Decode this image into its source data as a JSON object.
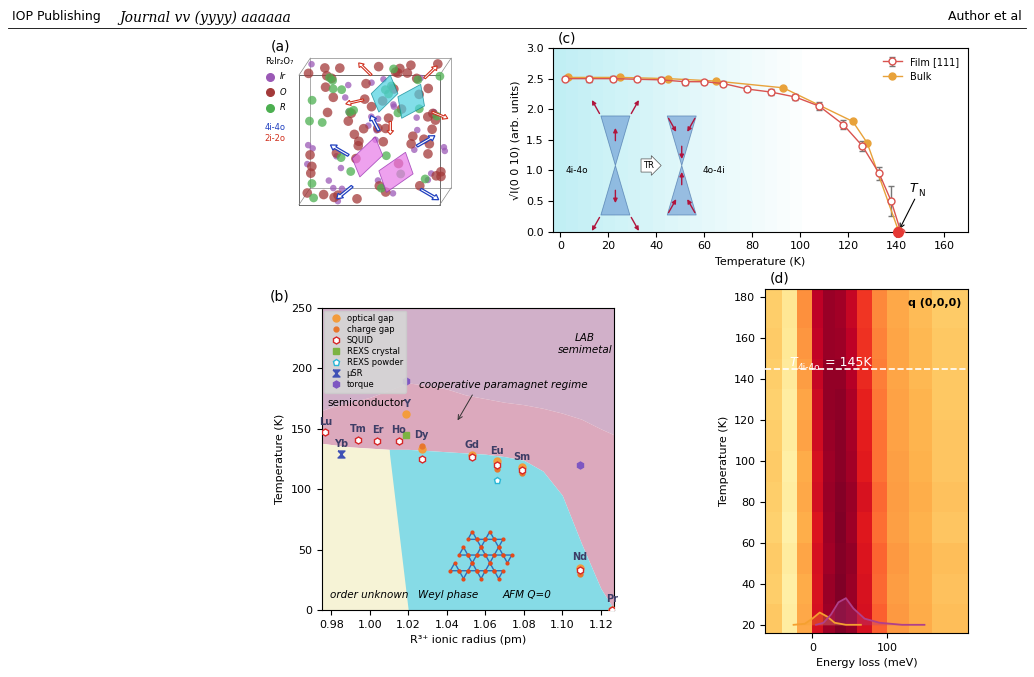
{
  "header": {
    "publisher": "IOP Publishing",
    "journal": "Journal vv (yyyy) aaaaaa",
    "author": "Author et al"
  },
  "panel_a": {
    "label": "(a)",
    "formula": "R₂Ir₂O₇",
    "atoms": [
      {
        "name": "Ir",
        "color": "#9b59b6"
      },
      {
        "name": "O",
        "color": "#a33a3a"
      },
      {
        "name": "R",
        "color": "#4caf50"
      }
    ],
    "configurations": [
      {
        "name": "4i-4o",
        "color": "#1f3fbf"
      },
      {
        "name": "2i-2o",
        "color": "#d0301e"
      }
    ]
  },
  "chart_data": [
    {
      "label": "(b)",
      "type": "scatter",
      "xlabel": "R³⁺ ionic radius (pm)",
      "ylabel": "Temperature (K)",
      "xlim": [
        0.975,
        1.127
      ],
      "xticks": [
        {
          "value": 0.98,
          "label": "0.98"
        },
        {
          "value": 1.0,
          "label": "1.00"
        },
        {
          "value": 1.02,
          "label": "1.02"
        },
        {
          "value": 1.04,
          "label": "1.04"
        },
        {
          "value": 1.06,
          "label": "1.06"
        },
        {
          "value": 1.08,
          "label": "1.08"
        },
        {
          "value": 1.1,
          "label": "1.10"
        },
        {
          "value": 1.12,
          "label": "1.12"
        }
      ],
      "ylim": [
        0,
        250
      ],
      "yticks": [
        0,
        50,
        100,
        150,
        200,
        250
      ],
      "legend": "upper left",
      "series": [
        {
          "name": "optical gap",
          "color": "#f39c3c",
          "marker": "circle",
          "x": [
            1.019,
            1.027,
            1.053,
            1.066,
            1.079,
            1.109,
            1.126
          ],
          "values": [
            162,
            133,
            128,
            123,
            118,
            35,
            0
          ]
        },
        {
          "name": "charge gap",
          "color": "#e8762c",
          "marker": "dot",
          "x": [
            1.027,
            1.066,
            1.079,
            1.109
          ],
          "values": [
            136,
            117,
            113,
            30
          ]
        },
        {
          "name": "SQUID",
          "color": "#d62728",
          "marker": "open hexagon",
          "x": [
            0.977,
            0.994,
            1.004,
            1.015,
            1.027,
            1.053,
            1.066,
            1.079,
            1.109,
            1.126
          ],
          "values": [
            147,
            141,
            140,
            140,
            125,
            127,
            120,
            116,
            33,
            0
          ]
        },
        {
          "name": "REXS crystal",
          "color": "#7cb342",
          "marker": "square",
          "x": [
            1.019
          ],
          "values": [
            145
          ]
        },
        {
          "name": "REXS powder",
          "color": "#29b6d6",
          "marker": "open pentagon",
          "x": [
            1.066
          ],
          "values": [
            108
          ]
        },
        {
          "name": "μSR",
          "color": "#3f51b5",
          "marker": "hourglass",
          "x": [
            0.985
          ],
          "values": [
            129
          ]
        },
        {
          "name": "torque",
          "color": "#7e57c2",
          "marker": "hexagon",
          "x": [
            1.019,
            1.109
          ],
          "values": [
            190,
            120
          ]
        }
      ],
      "elements": [
        {
          "name": "Lu",
          "radius": 0.977,
          "temperature": 147
        },
        {
          "name": "Yb",
          "radius": 0.985,
          "temperature": 129
        },
        {
          "name": "Tm",
          "radius": 0.994,
          "temperature": 141
        },
        {
          "name": "Er",
          "radius": 1.004,
          "temperature": 140
        },
        {
          "name": "Ho",
          "radius": 1.015,
          "temperature": 140
        },
        {
          "name": "Y",
          "radius": 1.019,
          "temperature": 162
        },
        {
          "name": "Dy",
          "radius": 1.027,
          "temperature": 136
        },
        {
          "name": "Gd",
          "radius": 1.053,
          "temperature": 128
        },
        {
          "name": "Eu",
          "radius": 1.066,
          "temperature": 123
        },
        {
          "name": "Sm",
          "radius": 1.079,
          "temperature": 118
        },
        {
          "name": "Nd",
          "radius": 1.109,
          "temperature": 35
        },
        {
          "name": "Pr",
          "radius": 1.126,
          "temperature": 0
        }
      ],
      "phase_boundary": {
        "x": [
          0.975,
          0.98,
          0.99,
          1.0,
          1.01,
          1.02,
          1.03,
          1.04,
          1.05,
          1.06,
          1.07,
          1.08,
          1.09,
          1.1,
          1.11,
          1.12,
          1.127
        ],
        "neel": [
          138,
          137,
          135,
          134,
          133,
          133,
          132,
          131,
          130,
          129,
          127,
          124,
          115,
          95,
          55,
          18,
          0
        ],
        "crossover": [
          165,
          168,
          172,
          176,
          182,
          188,
          186,
          183,
          178,
          175,
          172,
          170,
          167,
          163,
          158,
          150,
          145
        ],
        "weyl_onset": 1.01
      },
      "regions": [
        "semiconductor",
        "cooperative paramagnet regime",
        "LAB\nsemimetal",
        "order unknown",
        "Weyl phase",
        "AFM Q=0"
      ]
    },
    {
      "label": "(c)",
      "type": "line",
      "xlabel": "Temperature (K)",
      "ylabel": "√I(0 0 10) (arb. units)",
      "xlim": [
        -3,
        170
      ],
      "xticks": [
        0,
        20,
        40,
        60,
        80,
        100,
        120,
        140,
        160
      ],
      "ylim": [
        0,
        3.0
      ],
      "yticks": [
        {
          "value": 0,
          "label": "0.0"
        },
        {
          "value": 0.5,
          "label": "0.5"
        },
        {
          "value": 1.0,
          "label": "1.0"
        },
        {
          "value": 1.5,
          "label": "1.5"
        },
        {
          "value": 2.0,
          "label": "2.0"
        },
        {
          "value": 2.5,
          "label": "2.5"
        },
        {
          "value": 3.0,
          "label": "3.0"
        }
      ],
      "legend": "upper right",
      "series": [
        {
          "name": "Film [111]",
          "color": "#d9534f",
          "marker": "open circle",
          "line_style": "solid",
          "x": [
            2,
            12,
            22,
            32,
            42,
            52,
            60,
            68,
            78,
            88,
            98,
            108,
            118,
            126,
            133,
            138,
            142
          ],
          "values": [
            2.5,
            2.5,
            2.5,
            2.49,
            2.48,
            2.45,
            2.45,
            2.42,
            2.33,
            2.28,
            2.2,
            2.05,
            1.75,
            1.4,
            0.95,
            0.5,
            0.0
          ],
          "errors": [
            0.02,
            0.05,
            0.04,
            0.03,
            0.04,
            0.05,
            0.03,
            0.04,
            0.04,
            0.05,
            0.05,
            0.06,
            0.07,
            0.08,
            0.1,
            0.25,
            0.0
          ]
        },
        {
          "name": "Bulk",
          "color": "#e8a23a",
          "marker": "circle",
          "line_style": "solid",
          "x": [
            3,
            25,
            45,
            65,
            93,
            122,
            128,
            141
          ],
          "values": [
            2.52,
            2.52,
            2.5,
            2.46,
            2.35,
            1.8,
            1.45,
            0.02
          ]
        }
      ],
      "annotation": {
        "text": "T",
        "subscript": "N",
        "x": 141,
        "y": 0,
        "color": "#e53935"
      },
      "inset_labels": [
        "4i-4o",
        "TR",
        "4o-4i"
      ]
    },
    {
      "label": "(d)",
      "type": "heatmap",
      "xlabel": "Energy loss (meV)",
      "ylabel": "Temperature (K)",
      "xlim": [
        -63,
        208
      ],
      "xticks": [
        0,
        100
      ],
      "ylim": [
        16,
        184
      ],
      "yticks": [
        20,
        40,
        60,
        80,
        100,
        120,
        140,
        160,
        180
      ],
      "x_edges": [
        -63,
        -40,
        -20,
        0,
        15,
        30,
        45,
        60,
        80,
        100,
        130,
        160,
        208
      ],
      "y_edges": [
        16,
        30,
        45,
        60,
        75,
        90,
        105,
        120,
        135,
        150,
        165,
        184
      ],
      "cells": [
        [
          0.32,
          0.14,
          0.42,
          0.8,
          0.94,
          1.0,
          0.96,
          0.8,
          0.6,
          0.47,
          0.41,
          0.35
        ],
        [
          0.3,
          0.13,
          0.41,
          0.79,
          0.95,
          1.0,
          0.95,
          0.79,
          0.58,
          0.46,
          0.4,
          0.34
        ],
        [
          0.31,
          0.15,
          0.43,
          0.8,
          0.93,
          0.99,
          0.96,
          0.78,
          0.59,
          0.47,
          0.4,
          0.35
        ],
        [
          0.29,
          0.12,
          0.4,
          0.78,
          0.94,
          1.0,
          0.94,
          0.77,
          0.57,
          0.45,
          0.39,
          0.33
        ],
        [
          0.3,
          0.14,
          0.42,
          0.81,
          0.95,
          0.99,
          0.95,
          0.79,
          0.58,
          0.46,
          0.4,
          0.34
        ],
        [
          0.31,
          0.13,
          0.41,
          0.8,
          0.94,
          0.98,
          0.93,
          0.76,
          0.56,
          0.45,
          0.39,
          0.33
        ],
        [
          0.3,
          0.15,
          0.44,
          0.82,
          0.95,
          0.98,
          0.92,
          0.75,
          0.56,
          0.44,
          0.38,
          0.33
        ],
        [
          0.29,
          0.14,
          0.43,
          0.83,
          0.96,
          0.97,
          0.91,
          0.74,
          0.55,
          0.44,
          0.38,
          0.32
        ],
        [
          0.3,
          0.16,
          0.46,
          0.85,
          0.96,
          0.96,
          0.89,
          0.72,
          0.54,
          0.43,
          0.37,
          0.32
        ],
        [
          0.31,
          0.17,
          0.48,
          0.86,
          0.95,
          0.94,
          0.87,
          0.7,
          0.53,
          0.43,
          0.37,
          0.32
        ],
        [
          0.3,
          0.18,
          0.5,
          0.87,
          0.95,
          0.93,
          0.85,
          0.69,
          0.52,
          0.42,
          0.36,
          0.31
        ]
      ],
      "threshold": {
        "value": 145,
        "text": "T",
        "subscript": "4i-4o",
        "rest": "= 145K"
      },
      "q_label": "q (0,0,0)",
      "fit_curves": [
        {
          "color": "#f5a030",
          "x": [
            -25,
            -10,
            0,
            10,
            20,
            30,
            45,
            65
          ],
          "values": [
            20,
            20.5,
            23,
            26,
            24,
            21,
            20,
            20
          ]
        },
        {
          "color": "#b0408a",
          "x": [
            5,
            15,
            25,
            35,
            45,
            55,
            70,
            90,
            120,
            150
          ],
          "values": [
            20,
            21,
            25,
            31,
            33,
            28,
            23,
            21,
            20,
            20
          ]
        }
      ]
    }
  ]
}
